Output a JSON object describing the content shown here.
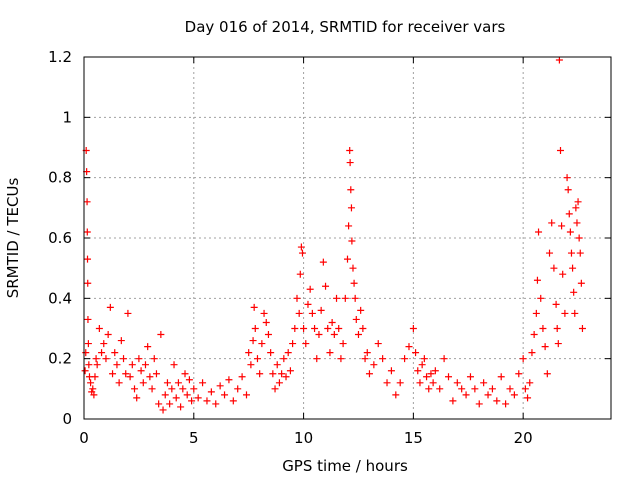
{
  "chart_data": {
    "type": "scatter",
    "title": "Day 016 of 2014, SRMTID for receiver vars",
    "xlabel": "GPS time / hours",
    "ylabel": "SRMTID / TECUs",
    "xlim": [
      0,
      24
    ],
    "ylim": [
      0,
      1.2
    ],
    "xticks": [
      0,
      5,
      10,
      15,
      20
    ],
    "xtick_labels": [
      "0",
      "5",
      "10",
      "15",
      "20"
    ],
    "yticks": [
      0,
      0.2,
      0.4,
      0.6,
      0.8,
      1,
      1.2
    ],
    "ytick_labels": [
      "0",
      "0.2",
      "0.4",
      "0.6",
      "0.8",
      "1",
      "1.2"
    ],
    "grid": true,
    "marker": "+",
    "series": [
      {
        "name": "SRMTID",
        "color": "#ff0000",
        "points": [
          [
            0.05,
            0.16
          ],
          [
            0.08,
            0.22
          ],
          [
            0.1,
            0.89
          ],
          [
            0.12,
            0.82
          ],
          [
            0.14,
            0.72
          ],
          [
            0.15,
            0.62
          ],
          [
            0.16,
            0.53
          ],
          [
            0.17,
            0.45
          ],
          [
            0.18,
            0.33
          ],
          [
            0.2,
            0.25
          ],
          [
            0.22,
            0.18
          ],
          [
            0.25,
            0.14
          ],
          [
            0.3,
            0.12
          ],
          [
            0.35,
            0.09
          ],
          [
            0.4,
            0.1
          ],
          [
            0.45,
            0.08
          ],
          [
            0.5,
            0.14
          ],
          [
            0.55,
            0.2
          ],
          [
            0.6,
            0.18
          ],
          [
            0.7,
            0.3
          ],
          [
            0.8,
            0.22
          ],
          [
            0.9,
            0.25
          ],
          [
            1.0,
            0.2
          ],
          [
            1.1,
            0.28
          ],
          [
            1.2,
            0.37
          ],
          [
            1.3,
            0.15
          ],
          [
            1.4,
            0.22
          ],
          [
            1.5,
            0.18
          ],
          [
            1.6,
            0.12
          ],
          [
            1.7,
            0.26
          ],
          [
            1.8,
            0.2
          ],
          [
            1.9,
            0.15
          ],
          [
            2.0,
            0.35
          ],
          [
            2.1,
            0.14
          ],
          [
            2.2,
            0.18
          ],
          [
            2.3,
            0.1
          ],
          [
            2.4,
            0.07
          ],
          [
            2.5,
            0.2
          ],
          [
            2.6,
            0.16
          ],
          [
            2.7,
            0.12
          ],
          [
            2.8,
            0.18
          ],
          [
            2.9,
            0.24
          ],
          [
            3.0,
            0.14
          ],
          [
            3.1,
            0.1
          ],
          [
            3.2,
            0.2
          ],
          [
            3.3,
            0.15
          ],
          [
            3.4,
            0.05
          ],
          [
            3.5,
            0.28
          ],
          [
            3.6,
            0.03
          ],
          [
            3.7,
            0.08
          ],
          [
            3.8,
            0.12
          ],
          [
            3.9,
            0.05
          ],
          [
            4.0,
            0.1
          ],
          [
            4.1,
            0.18
          ],
          [
            4.2,
            0.07
          ],
          [
            4.3,
            0.12
          ],
          [
            4.4,
            0.04
          ],
          [
            4.5,
            0.1
          ],
          [
            4.6,
            0.15
          ],
          [
            4.7,
            0.08
          ],
          [
            4.8,
            0.13
          ],
          [
            4.9,
            0.06
          ],
          [
            5.0,
            0.1
          ],
          [
            5.2,
            0.07
          ],
          [
            5.4,
            0.12
          ],
          [
            5.6,
            0.06
          ],
          [
            5.8,
            0.09
          ],
          [
            6.0,
            0.05
          ],
          [
            6.2,
            0.11
          ],
          [
            6.4,
            0.08
          ],
          [
            6.6,
            0.13
          ],
          [
            6.8,
            0.06
          ],
          [
            7.0,
            0.1
          ],
          [
            7.2,
            0.14
          ],
          [
            7.4,
            0.08
          ],
          [
            7.5,
            0.22
          ],
          [
            7.6,
            0.18
          ],
          [
            7.7,
            0.26
          ],
          [
            7.75,
            0.37
          ],
          [
            7.8,
            0.3
          ],
          [
            7.9,
            0.2
          ],
          [
            8.0,
            0.15
          ],
          [
            8.1,
            0.25
          ],
          [
            8.2,
            0.35
          ],
          [
            8.3,
            0.32
          ],
          [
            8.4,
            0.28
          ],
          [
            8.5,
            0.22
          ],
          [
            8.6,
            0.15
          ],
          [
            8.7,
            0.1
          ],
          [
            8.8,
            0.18
          ],
          [
            8.9,
            0.12
          ],
          [
            9.0,
            0.15
          ],
          [
            9.1,
            0.2
          ],
          [
            9.2,
            0.14
          ],
          [
            9.3,
            0.22
          ],
          [
            9.4,
            0.16
          ],
          [
            9.5,
            0.25
          ],
          [
            9.6,
            0.3
          ],
          [
            9.7,
            0.4
          ],
          [
            9.8,
            0.35
          ],
          [
            9.85,
            0.48
          ],
          [
            9.9,
            0.57
          ],
          [
            9.95,
            0.55
          ],
          [
            10.0,
            0.3
          ],
          [
            10.1,
            0.25
          ],
          [
            10.2,
            0.38
          ],
          [
            10.3,
            0.43
          ],
          [
            10.4,
            0.35
          ],
          [
            10.5,
            0.3
          ],
          [
            10.6,
            0.2
          ],
          [
            10.7,
            0.28
          ],
          [
            10.8,
            0.36
          ],
          [
            10.9,
            0.52
          ],
          [
            11.0,
            0.44
          ],
          [
            11.1,
            0.3
          ],
          [
            11.2,
            0.22
          ],
          [
            11.3,
            0.32
          ],
          [
            11.4,
            0.28
          ],
          [
            11.5,
            0.4
          ],
          [
            11.6,
            0.3
          ],
          [
            11.7,
            0.2
          ],
          [
            11.8,
            0.25
          ],
          [
            11.9,
            0.4
          ],
          [
            12.0,
            0.53
          ],
          [
            12.05,
            0.64
          ],
          [
            12.1,
            0.89
          ],
          [
            12.12,
            0.85
          ],
          [
            12.15,
            0.76
          ],
          [
            12.18,
            0.7
          ],
          [
            12.2,
            0.59
          ],
          [
            12.25,
            0.5
          ],
          [
            12.3,
            0.45
          ],
          [
            12.35,
            0.4
          ],
          [
            12.4,
            0.33
          ],
          [
            12.5,
            0.28
          ],
          [
            12.6,
            0.36
          ],
          [
            12.7,
            0.3
          ],
          [
            12.8,
            0.2
          ],
          [
            12.9,
            0.22
          ],
          [
            13.0,
            0.15
          ],
          [
            13.2,
            0.18
          ],
          [
            13.4,
            0.25
          ],
          [
            13.6,
            0.2
          ],
          [
            13.8,
            0.12
          ],
          [
            14.0,
            0.16
          ],
          [
            14.2,
            0.08
          ],
          [
            14.4,
            0.12
          ],
          [
            14.6,
            0.2
          ],
          [
            14.8,
            0.24
          ],
          [
            15.0,
            0.3
          ],
          [
            15.1,
            0.22
          ],
          [
            15.2,
            0.16
          ],
          [
            15.3,
            0.12
          ],
          [
            15.4,
            0.18
          ],
          [
            15.5,
            0.2
          ],
          [
            15.6,
            0.14
          ],
          [
            15.7,
            0.1
          ],
          [
            15.8,
            0.15
          ],
          [
            15.9,
            0.12
          ],
          [
            16.0,
            0.16
          ],
          [
            16.2,
            0.1
          ],
          [
            16.4,
            0.2
          ],
          [
            16.6,
            0.14
          ],
          [
            16.8,
            0.06
          ],
          [
            17.0,
            0.12
          ],
          [
            17.2,
            0.1
          ],
          [
            17.4,
            0.08
          ],
          [
            17.6,
            0.14
          ],
          [
            17.8,
            0.1
          ],
          [
            18.0,
            0.05
          ],
          [
            18.2,
            0.12
          ],
          [
            18.4,
            0.08
          ],
          [
            18.6,
            0.1
          ],
          [
            18.8,
            0.06
          ],
          [
            19.0,
            0.14
          ],
          [
            19.2,
            0.05
          ],
          [
            19.4,
            0.1
          ],
          [
            19.6,
            0.08
          ],
          [
            19.8,
            0.15
          ],
          [
            20.0,
            0.2
          ],
          [
            20.1,
            0.1
          ],
          [
            20.2,
            0.07
          ],
          [
            20.3,
            0.12
          ],
          [
            20.4,
            0.22
          ],
          [
            20.5,
            0.28
          ],
          [
            20.6,
            0.35
          ],
          [
            20.65,
            0.46
          ],
          [
            20.7,
            0.62
          ],
          [
            20.8,
            0.4
          ],
          [
            20.9,
            0.3
          ],
          [
            21.0,
            0.24
          ],
          [
            21.1,
            0.15
          ],
          [
            21.2,
            0.55
          ],
          [
            21.3,
            0.65
          ],
          [
            21.4,
            0.5
          ],
          [
            21.5,
            0.38
          ],
          [
            21.55,
            0.3
          ],
          [
            21.6,
            0.25
          ],
          [
            21.65,
            1.19
          ],
          [
            21.7,
            0.89
          ],
          [
            21.75,
            0.64
          ],
          [
            21.8,
            0.48
          ],
          [
            21.9,
            0.35
          ],
          [
            22.0,
            0.8
          ],
          [
            22.05,
            0.76
          ],
          [
            22.1,
            0.68
          ],
          [
            22.15,
            0.62
          ],
          [
            22.2,
            0.55
          ],
          [
            22.25,
            0.5
          ],
          [
            22.3,
            0.42
          ],
          [
            22.35,
            0.35
          ],
          [
            22.4,
            0.7
          ],
          [
            22.45,
            0.65
          ],
          [
            22.5,
            0.72
          ],
          [
            22.55,
            0.6
          ],
          [
            22.6,
            0.55
          ],
          [
            22.65,
            0.45
          ],
          [
            22.7,
            0.3
          ]
        ]
      }
    ]
  }
}
